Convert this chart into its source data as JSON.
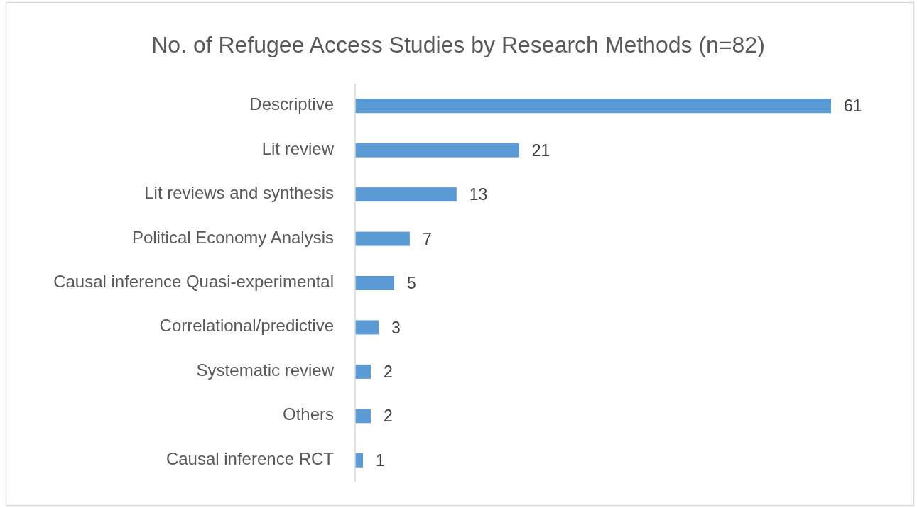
{
  "chart_data": {
    "type": "bar",
    "orientation": "horizontal",
    "title": "No. of Refugee Access Studies by Research Methods (n=82)",
    "categories": [
      "Descriptive",
      "Lit review",
      "Lit reviews and synthesis",
      "Political Economy Analysis",
      "Causal inference Quasi-experimental",
      "Correlational/predictive",
      "Systematic review",
      "Others",
      "Causal inference RCT"
    ],
    "values": [
      61,
      21,
      13,
      7,
      5,
      3,
      2,
      2,
      1
    ],
    "color": "#5b9bd5",
    "data_labels": true,
    "tick_labels": "y"
  }
}
